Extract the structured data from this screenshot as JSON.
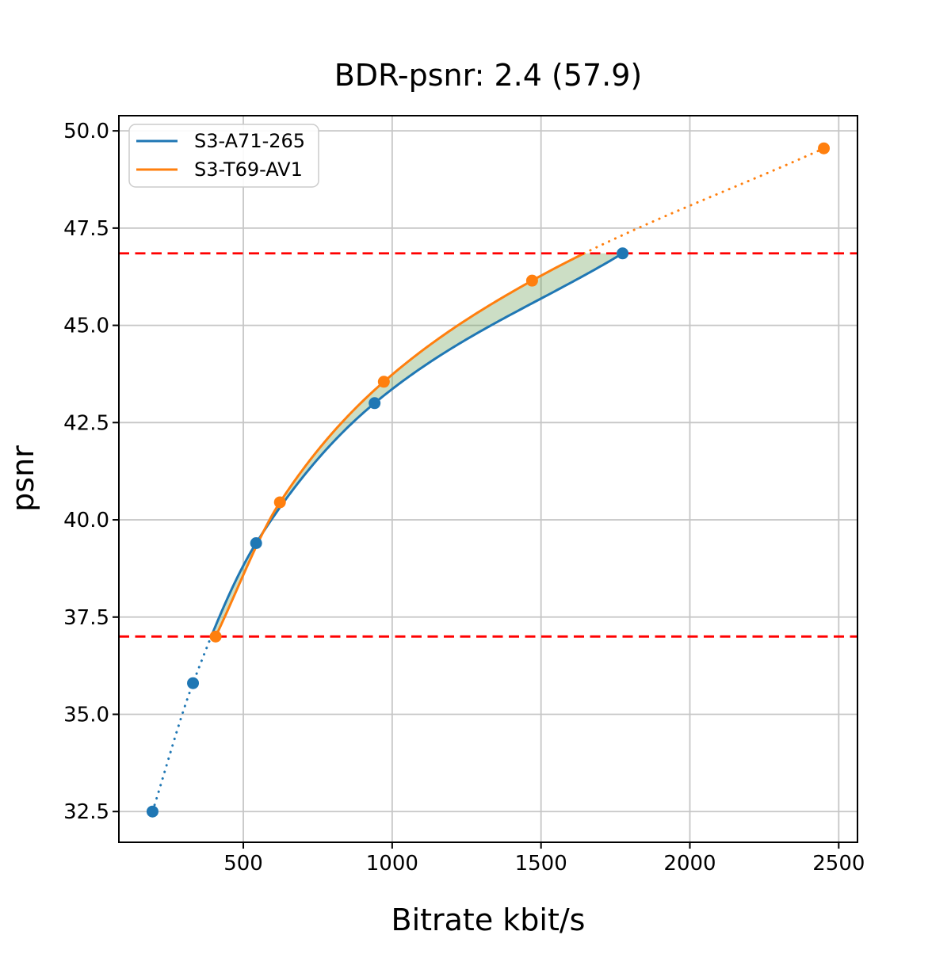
{
  "chart_data": {
    "type": "line",
    "title": "BDR-psnr: 2.4 (57.9)",
    "xlabel": "Bitrate kbit/s",
    "ylabel": "psnr",
    "xlim": [
      82,
      2563
    ],
    "ylim": [
      31.71,
      50.39
    ],
    "grid": true,
    "legend_position": "upper left",
    "xticks": {
      "values": [
        500,
        1000,
        1500,
        2000,
        2500
      ],
      "labels": [
        "500",
        "1000",
        "1500",
        "2000",
        "2500"
      ]
    },
    "yticks": {
      "values": [
        32.5,
        35.0,
        37.5,
        40.0,
        42.5,
        45.0,
        47.5,
        50.0
      ],
      "labels": [
        "32.5",
        "35.0",
        "37.5",
        "40.0",
        "42.5",
        "45.0",
        "47.5",
        "50.0"
      ]
    },
    "series": [
      {
        "name": "S3-A71-265",
        "color": "#1f77b4",
        "x": [
          195,
          331,
          543,
          941,
          1774
        ],
        "y": [
          32.5,
          35.8,
          39.4,
          43.0,
          46.85
        ]
      },
      {
        "name": "S3-T69-AV1",
        "color": "#ff7f0e",
        "x": [
          407,
          623,
          972,
          1470,
          2450
        ],
        "y": [
          37.0,
          40.45,
          43.55,
          46.15,
          49.55
        ]
      }
    ],
    "overlap_psnr_range": [
      37.0,
      46.85
    ],
    "reference_lines": [
      {
        "axis": "y",
        "value": 37.0,
        "color": "#ff0000",
        "style": "dashed"
      },
      {
        "axis": "y",
        "value": 46.85,
        "color": "#ff0000",
        "style": "dashed"
      }
    ],
    "fill_between": {
      "color": "rgba(100,155,80,0.33)",
      "range": [
        407,
        1774
      ]
    },
    "extrapolation_style": "dotted",
    "grid_color": "#c6c6c6"
  }
}
